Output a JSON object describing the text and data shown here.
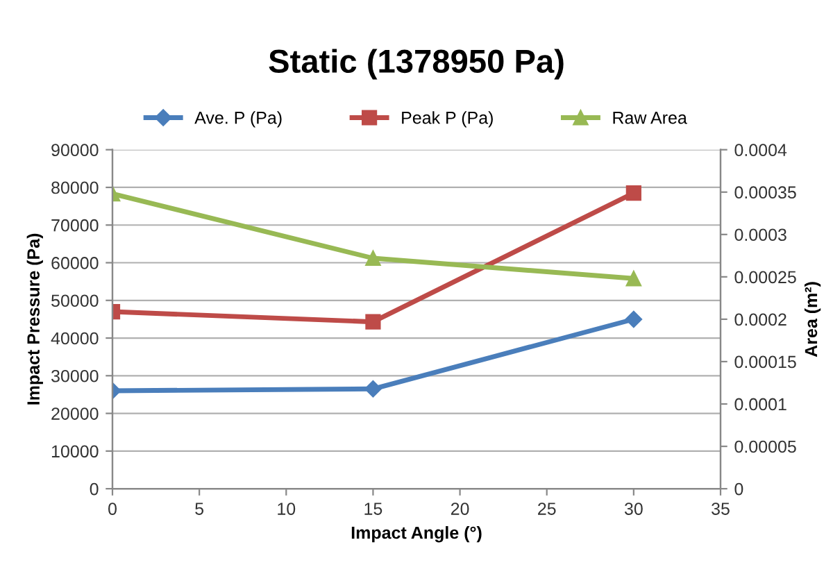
{
  "chart_data": {
    "type": "line",
    "title": "Static (1378950 Pa)",
    "xlabel": "Impact Angle (°)",
    "ylabel": "Impact Pressure (Pa)",
    "y2label": "Area (m²)",
    "x": [
      0,
      15,
      30
    ],
    "series": [
      {
        "name": "Ave. P (Pa)",
        "color": "#4a7ebb",
        "marker": "diamond",
        "values": [
          26000,
          26500,
          45000
        ]
      },
      {
        "name": "Peak P (Pa)",
        "color": "#be4b48",
        "marker": "square",
        "values": [
          47000,
          44300,
          78500
        ]
      },
      {
        "name": "Raw Area",
        "color": "#98b954",
        "marker": "triangle",
        "axis": "y2",
        "values": [
          0.000348,
          0.000272,
          0.000248
        ]
      }
    ],
    "xlim": [
      0,
      35
    ],
    "xticks": [
      0,
      5,
      10,
      15,
      20,
      25,
      30,
      35
    ],
    "ylim": [
      0,
      90000
    ],
    "yticks": [
      0,
      10000,
      20000,
      30000,
      40000,
      50000,
      60000,
      70000,
      80000,
      90000
    ],
    "y2lim": [
      0,
      0.0004
    ],
    "y2ticks": [
      {
        "value": 0,
        "label": "0"
      },
      {
        "value": 5e-05,
        "label": "0.00005"
      },
      {
        "value": 0.0001,
        "label": "0.0001"
      },
      {
        "value": 0.00015,
        "label": "0.00015"
      },
      {
        "value": 0.0002,
        "label": "0.0002"
      },
      {
        "value": 0.00025,
        "label": "0.00025"
      },
      {
        "value": 0.0003,
        "label": "0.0003"
      },
      {
        "value": 0.00035,
        "label": "0.00035"
      },
      {
        "value": 0.0004,
        "label": "0.0004"
      }
    ],
    "grid": "y",
    "legend": "top",
    "line_style": "solid"
  }
}
